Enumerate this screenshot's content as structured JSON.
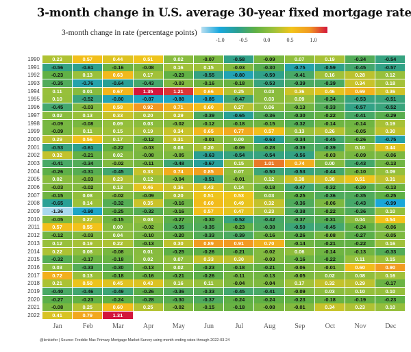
{
  "chart_data": {
    "type": "heatmap",
    "title": "3-month change in U.S. average 30-year fixed mortgage rate",
    "legend": {
      "label": "3-month change in rate  (percentage points)",
      "ticks": [
        "-1.0",
        "-0.5",
        "0.0",
        "0.5",
        "1.0"
      ],
      "range": [
        -1.4,
        1.3
      ],
      "colors": [
        "#b8def0",
        "#19a8de",
        "#2a9f92",
        "#5fb045",
        "#9cc13a",
        "#f2c41a",
        "#f29a22",
        "#d3163c"
      ],
      "placement": "top-right"
    },
    "columns": [
      "Jan",
      "Feb",
      "Mar",
      "Apr",
      "May",
      "Jun",
      "Jul",
      "Aug",
      "Sep",
      "Oct",
      "Nov",
      "Dec"
    ],
    "rows": [
      "1990",
      "1991",
      "1992",
      "1993",
      "1994",
      "1995",
      "1996",
      "1997",
      "1998",
      "1999",
      "2000",
      "2001",
      "2002",
      "2003",
      "2004",
      "2005",
      "2006",
      "2007",
      "2008",
      "2009",
      "2010",
      "2011",
      "2012",
      "2013",
      "2014",
      "2015",
      "2016",
      "2017",
      "2018",
      "2019",
      "2020",
      "2021",
      "2022"
    ],
    "values": [
      [
        0.23,
        0.57,
        0.44,
        0.51,
        0.02,
        -0.07,
        -0.58,
        -0.09,
        0.07,
        0.19,
        -0.34,
        -0.54
      ],
      [
        -0.56,
        -0.61,
        -0.16,
        -0.08,
        0.16,
        0.15,
        -0.03,
        -0.3,
        -0.75,
        -0.59,
        -0.45,
        -0.57
      ],
      [
        -0.23,
        0.13,
        0.63,
        0.17,
        -0.23,
        -0.55,
        -0.8,
        -0.59,
        -0.41,
        0.16,
        0.28,
        0.12
      ],
      [
        -0.35,
        -0.76,
        -0.64,
        -0.43,
        -0.03,
        -0.16,
        -0.18,
        -0.53,
        -0.39,
        -0.39,
        0.34,
        0.18
      ],
      [
        0.11,
        0.01,
        0.67,
        1.35,
        1.21,
        0.66,
        0.25,
        0.03,
        0.36,
        0.46,
        0.69,
        0.36
      ],
      [
        0.1,
        -0.52,
        -0.8,
        -0.87,
        -0.88,
        -0.85,
        -0.47,
        0.03,
        0.09,
        -0.34,
        -0.53,
        -0.51
      ],
      [
        -0.45,
        -0.03,
        0.58,
        0.92,
        0.71,
        0.6,
        0.27,
        0.06,
        -0.13,
        -0.33,
        -0.57,
        -0.52
      ],
      [
        0.02,
        0.13,
        0.33,
        0.2,
        0.29,
        -0.39,
        -0.65,
        -0.36,
        -0.3,
        -0.22,
        -0.41,
        -0.29
      ],
      [
        -0.09,
        -0.08,
        0.09,
        0.03,
        -0.02,
        -0.12,
        -0.18,
        -0.15,
        -0.32,
        -0.14,
        -0.14,
        0.19
      ],
      [
        -0.09,
        0.11,
        0.15,
        0.19,
        0.34,
        0.65,
        0.77,
        0.57,
        0.13,
        0.26,
        -0.05,
        0.3
      ],
      [
        0.29,
        0.56,
        0.17,
        -0.12,
        0.31,
        -0.01,
        0.0,
        -0.63,
        -0.34,
        -0.45,
        -0.26,
        -0.75
      ],
      [
        -0.53,
        -0.61,
        -0.22,
        -0.03,
        0.08,
        0.2,
        -0.09,
        -0.28,
        -0.39,
        -0.39,
        0.1,
        0.44
      ],
      [
        0.32,
        -0.21,
        0.02,
        -0.08,
        -0.05,
        -0.63,
        -0.54,
        -0.54,
        -0.56,
        -0.03,
        -0.09,
        -0.06
      ],
      [
        -0.41,
        -0.34,
        -0.02,
        -0.11,
        -0.48,
        -0.67,
        0.15,
        1.01,
        0.74,
        0.0,
        -0.43,
        -0.13
      ],
      [
        -0.26,
        -0.31,
        -0.45,
        0.33,
        0.74,
        0.85,
        0.07,
        -0.5,
        -0.53,
        -0.44,
        -0.1,
        0.09
      ],
      [
        0.02,
        -0.03,
        0.23,
        0.12,
        -0.04,
        -0.51,
        -0.01,
        0.12,
        0.38,
        0.38,
        0.51,
        0.31
      ],
      [
        -0.03,
        -0.02,
        0.13,
        0.46,
        0.36,
        0.43,
        0.14,
        -0.18,
        -0.47,
        -0.32,
        -0.3,
        -0.13
      ],
      [
        -0.15,
        0.08,
        -0.02,
        -0.09,
        0.2,
        0.51,
        0.53,
        0.03,
        -0.25,
        -0.36,
        -0.35,
        -0.25
      ],
      [
        -0.65,
        0.14,
        -0.32,
        0.35,
        -0.16,
        0.6,
        0.49,
        0.32,
        -0.36,
        -0.06,
        -0.43,
        -0.99
      ],
      [
        -1.36,
        -0.9,
        -0.25,
        -0.32,
        -0.16,
        0.57,
        0.47,
        0.23,
        -0.38,
        -0.22,
        -0.36,
        0.1
      ],
      [
        -0.05,
        0.27,
        -0.15,
        0.08,
        -0.27,
        -0.3,
        -0.52,
        -0.42,
        -0.37,
        -0.31,
        0.04,
        0.54
      ],
      [
        0.57,
        0.55,
        0.0,
        -0.02,
        -0.35,
        -0.35,
        -0.23,
        -0.38,
        -0.5,
        -0.45,
        -0.24,
        -0.06
      ],
      [
        -0.12,
        -0.03,
        0.04,
        -0.1,
        -0.2,
        -0.33,
        -0.39,
        -0.16,
        -0.26,
        -0.08,
        -0.27,
        -0.05
      ],
      [
        0.12,
        0.19,
        0.22,
        -0.13,
        0.3,
        0.89,
        0.91,
        0.7,
        -0.14,
        -0.21,
        -0.22,
        0.16
      ],
      [
        0.22,
        0.08,
        -0.08,
        0.01,
        -0.25,
        -0.26,
        -0.21,
        -0.02,
        0.06,
        -0.14,
        -0.13,
        -0.33
      ],
      [
        -0.32,
        -0.17,
        -0.18,
        0.02,
        0.07,
        0.33,
        0.3,
        -0.03,
        -0.16,
        -0.22,
        0.11,
        0.15
      ],
      [
        0.03,
        -0.33,
        -0.3,
        -0.13,
        0.02,
        -0.23,
        -0.18,
        -0.21,
        -0.06,
        -0.01,
        0.6,
        0.9
      ],
      [
        0.72,
        0.13,
        -0.18,
        -0.16,
        -0.21,
        -0.26,
        -0.11,
        -0.13,
        -0.05,
        0.02,
        0.08,
        0.16
      ],
      [
        0.21,
        0.5,
        0.45,
        0.43,
        0.16,
        0.11,
        -0.04,
        -0.04,
        0.17,
        0.32,
        0.29,
        -0.17
      ],
      [
        -0.4,
        -0.46,
        -0.49,
        -0.26,
        -0.36,
        -0.33,
        -0.45,
        -0.41,
        -0.09,
        0.03,
        0.1,
        0.1
      ],
      [
        -0.27,
        -0.23,
        -0.24,
        -0.28,
        -0.3,
        -0.37,
        -0.24,
        -0.24,
        -0.23,
        -0.18,
        -0.19,
        -0.23
      ],
      [
        -0.08,
        0.25,
        0.6,
        0.25,
        -0.02,
        -0.15,
        -0.18,
        -0.08,
        -0.01,
        0.34,
        0.23,
        0.1
      ],
      [
        0.41,
        0.79,
        1.31
      ]
    ],
    "footer": "@lenkiefer | Source: Freddie Mac Primary Mortgage Market Survey using month ending rates through 2022-03-24"
  }
}
